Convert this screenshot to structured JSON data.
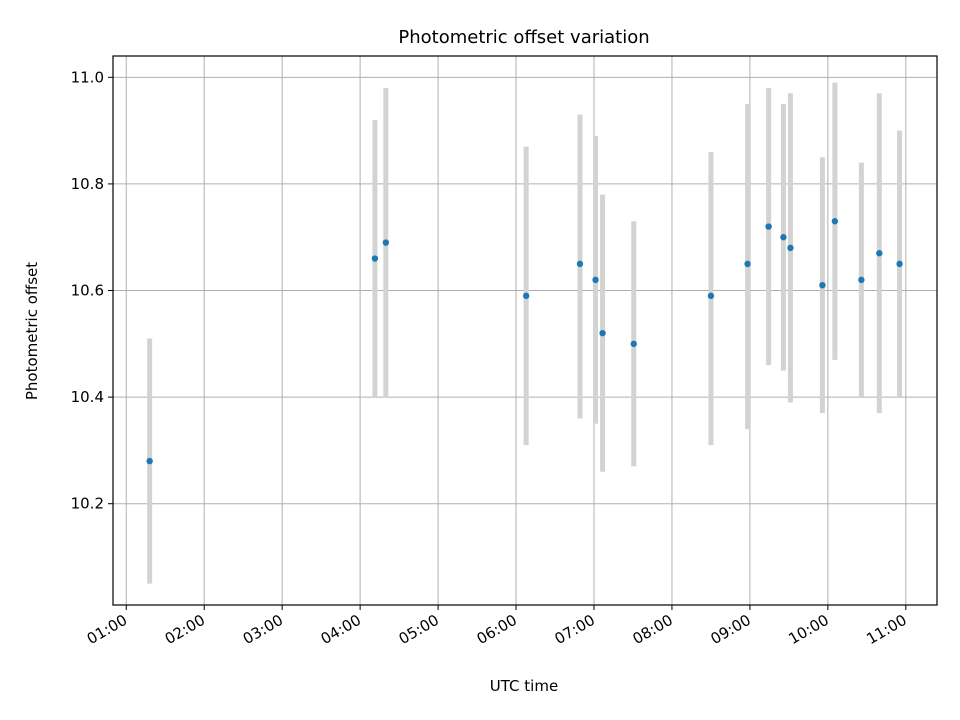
{
  "chart_data": {
    "type": "scatter",
    "title": "Photometric offset variation",
    "xlabel": "UTC time",
    "ylabel": "Photometric offset",
    "x_unit": "hours (UTC)",
    "xlim": [
      0.83,
      11.4
    ],
    "ylim": [
      10.01,
      11.04
    ],
    "grid": true,
    "legend": "none",
    "x_ticks": [
      {
        "value": 1,
        "label": "01:00"
      },
      {
        "value": 2,
        "label": "02:00"
      },
      {
        "value": 3,
        "label": "03:00"
      },
      {
        "value": 4,
        "label": "04:00"
      },
      {
        "value": 5,
        "label": "05:00"
      },
      {
        "value": 6,
        "label": "06:00"
      },
      {
        "value": 7,
        "label": "07:00"
      },
      {
        "value": 8,
        "label": "08:00"
      },
      {
        "value": 9,
        "label": "09:00"
      },
      {
        "value": 10,
        "label": "10:00"
      },
      {
        "value": 11,
        "label": "11:00"
      }
    ],
    "y_ticks": [
      {
        "value": 10.2,
        "label": "10.2"
      },
      {
        "value": 10.4,
        "label": "10.4"
      },
      {
        "value": 10.6,
        "label": "10.6"
      },
      {
        "value": 10.8,
        "label": "10.8"
      },
      {
        "value": 11.0,
        "label": "11.0"
      }
    ],
    "colors": {
      "point": "#1f77b4",
      "errorbar": "#d3d3d3",
      "grid": "#b0b0b0"
    },
    "points": [
      {
        "x": 1.3,
        "y": 10.28,
        "ylow": 10.05,
        "yhigh": 10.51
      },
      {
        "x": 4.19,
        "y": 10.66,
        "ylow": 10.4,
        "yhigh": 10.92
      },
      {
        "x": 4.33,
        "y": 10.69,
        "ylow": 10.4,
        "yhigh": 10.98
      },
      {
        "x": 6.13,
        "y": 10.59,
        "ylow": 10.31,
        "yhigh": 10.87
      },
      {
        "x": 6.82,
        "y": 10.65,
        "ylow": 10.36,
        "yhigh": 10.93
      },
      {
        "x": 7.02,
        "y": 10.62,
        "ylow": 10.35,
        "yhigh": 10.89
      },
      {
        "x": 7.11,
        "y": 10.52,
        "ylow": 10.26,
        "yhigh": 10.78
      },
      {
        "x": 7.51,
        "y": 10.5,
        "ylow": 10.27,
        "yhigh": 10.73
      },
      {
        "x": 8.5,
        "y": 10.59,
        "ylow": 10.31,
        "yhigh": 10.86
      },
      {
        "x": 8.97,
        "y": 10.65,
        "ylow": 10.34,
        "yhigh": 10.95
      },
      {
        "x": 9.24,
        "y": 10.72,
        "ylow": 10.46,
        "yhigh": 10.98
      },
      {
        "x": 9.43,
        "y": 10.7,
        "ylow": 10.45,
        "yhigh": 10.95
      },
      {
        "x": 9.52,
        "y": 10.68,
        "ylow": 10.39,
        "yhigh": 10.97
      },
      {
        "x": 9.93,
        "y": 10.61,
        "ylow": 10.37,
        "yhigh": 10.85
      },
      {
        "x": 10.09,
        "y": 10.73,
        "ylow": 10.47,
        "yhigh": 10.99
      },
      {
        "x": 10.43,
        "y": 10.62,
        "ylow": 10.4,
        "yhigh": 10.84
      },
      {
        "x": 10.66,
        "y": 10.67,
        "ylow": 10.37,
        "yhigh": 10.97
      },
      {
        "x": 10.92,
        "y": 10.65,
        "ylow": 10.4,
        "yhigh": 10.9
      }
    ]
  }
}
